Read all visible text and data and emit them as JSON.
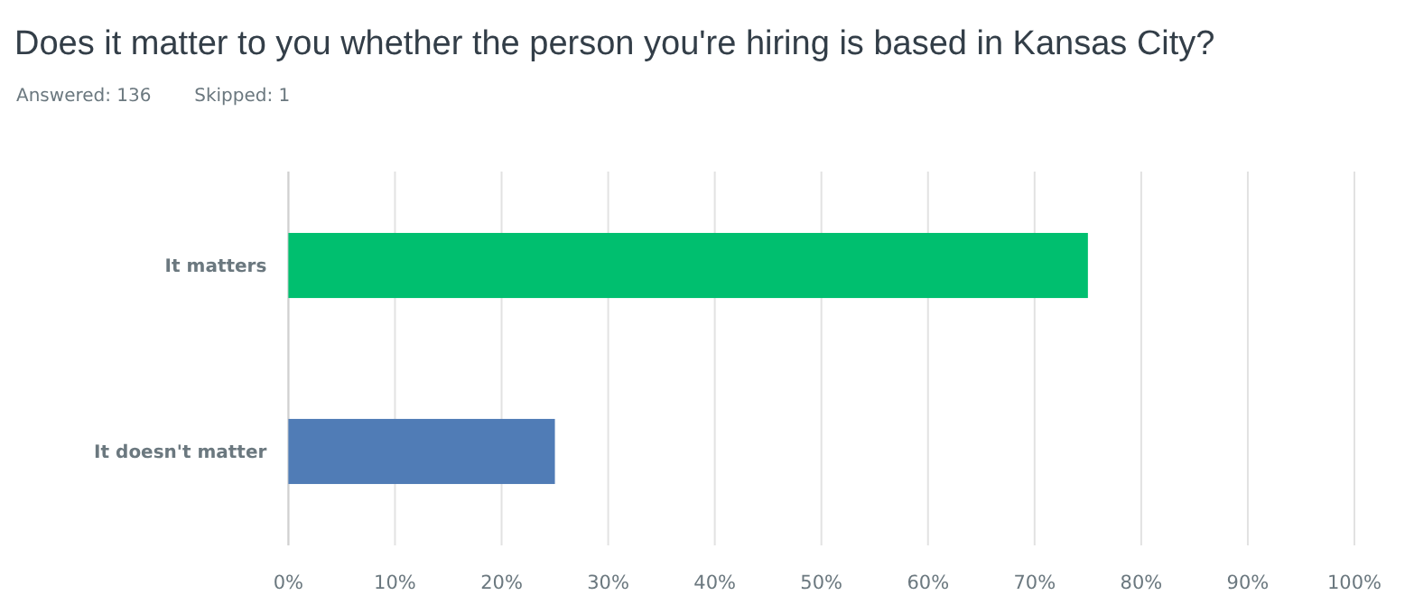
{
  "chart_data": {
    "type": "bar",
    "orientation": "horizontal",
    "title": "Does it matter to you whether the person you're hiring is based in Kansas City?",
    "annotations": [
      "Answered: 136",
      "Skipped: 1"
    ],
    "categories": [
      "It matters",
      "It doesn't matter"
    ],
    "values": [
      75,
      25
    ],
    "colors": [
      "#00bf6f",
      "#507cb6"
    ],
    "xlim": [
      0,
      100
    ],
    "xticks": [
      {
        "value": 0,
        "label": "0%"
      },
      {
        "value": 10,
        "label": "10%"
      },
      {
        "value": 20,
        "label": "20%"
      },
      {
        "value": 30,
        "label": "30%"
      },
      {
        "value": 40,
        "label": "40%"
      },
      {
        "value": 50,
        "label": "50%"
      },
      {
        "value": 60,
        "label": "60%"
      },
      {
        "value": 70,
        "label": "70%"
      },
      {
        "value": 80,
        "label": "80%"
      },
      {
        "value": 90,
        "label": "90%"
      },
      {
        "value": 100,
        "label": "100%"
      }
    ],
    "grid": "x"
  }
}
